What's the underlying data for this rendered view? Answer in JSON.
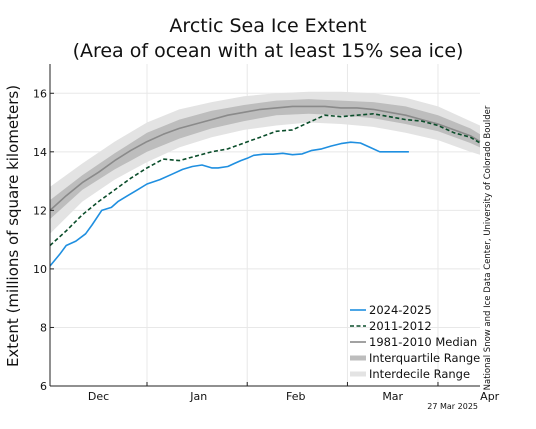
{
  "chart_data": {
    "type": "line",
    "title_line1": "Arctic Sea Ice Extent",
    "title_line2": "(Area of ocean with at least 15% sea ice)",
    "ylabel": "Extent (millions of square kilometers)",
    "xlabel": "",
    "credit": "National Snow and Ice Data Center, University of Colorado Boulder",
    "date_stamp": "27 Mar 2025",
    "ylim": [
      6,
      17
    ],
    "xlim": [
      0,
      133
    ],
    "yticks": [
      6,
      8,
      10,
      12,
      14,
      16
    ],
    "xtick_positions": [
      0,
      30,
      61,
      92,
      120
    ],
    "month_labels": [
      {
        "label": "Dec",
        "x": 15
      },
      {
        "label": "Jan",
        "x": 46
      },
      {
        "label": "Feb",
        "x": 76
      },
      {
        "label": "Mar",
        "x": 106
      },
      {
        "label": "Apr",
        "x": 136
      }
    ],
    "grid": true,
    "legend_position": "lower-right",
    "series": [
      {
        "name": "2024-2025",
        "color": "#1f8fe0",
        "style": "solid",
        "x": [
          0,
          3,
          5,
          8,
          11,
          13,
          16,
          19,
          21,
          24,
          27,
          30,
          34,
          38,
          41,
          44,
          47,
          50,
          52,
          55,
          57,
          59,
          61,
          63,
          66,
          69,
          72,
          75,
          78,
          81,
          84,
          87,
          90,
          93,
          96,
          99,
          102,
          105,
          108,
          111
        ],
        "values": [
          10.1,
          10.5,
          10.8,
          10.95,
          11.2,
          11.5,
          12.0,
          12.1,
          12.3,
          12.5,
          12.7,
          12.9,
          13.05,
          13.25,
          13.4,
          13.5,
          13.55,
          13.45,
          13.45,
          13.5,
          13.6,
          13.7,
          13.78,
          13.88,
          13.92,
          13.92,
          13.95,
          13.9,
          13.93,
          14.05,
          14.1,
          14.2,
          14.28,
          14.33,
          14.3,
          14.15,
          14.0,
          14.0,
          14.0,
          14.0
        ]
      },
      {
        "name": "2011-2012",
        "color": "#0a4d2a",
        "style": "dashed",
        "x": [
          0,
          5,
          10,
          15,
          20,
          25,
          30,
          35,
          40,
          45,
          50,
          55,
          60,
          65,
          70,
          75,
          80,
          85,
          90,
          95,
          100,
          105,
          110,
          115,
          120,
          125,
          130,
          133
        ],
        "values": [
          10.8,
          11.3,
          11.85,
          12.3,
          12.7,
          13.1,
          13.45,
          13.75,
          13.7,
          13.85,
          14.0,
          14.1,
          14.3,
          14.5,
          14.7,
          14.75,
          15.0,
          15.25,
          15.2,
          15.25,
          15.3,
          15.2,
          15.1,
          15.05,
          14.9,
          14.65,
          14.5,
          14.3
        ]
      },
      {
        "name": "1981-2010 Median",
        "color": "#8a8a8a",
        "style": "solid",
        "x": [
          0,
          5,
          10,
          15,
          20,
          25,
          30,
          35,
          40,
          45,
          50,
          55,
          60,
          65,
          70,
          75,
          80,
          85,
          90,
          95,
          100,
          105,
          110,
          115,
          120,
          125,
          130,
          133
        ],
        "values": [
          12.0,
          12.5,
          12.95,
          13.3,
          13.7,
          14.05,
          14.35,
          14.6,
          14.8,
          14.95,
          15.1,
          15.25,
          15.35,
          15.45,
          15.5,
          15.55,
          15.55,
          15.55,
          15.5,
          15.5,
          15.45,
          15.35,
          15.25,
          15.1,
          14.95,
          14.75,
          14.55,
          14.35
        ]
      },
      {
        "name": "Interquartile Range",
        "color": "#bdbdbd",
        "x": [
          0,
          10,
          20,
          30,
          40,
          50,
          60,
          70,
          80,
          90,
          100,
          110,
          120,
          130,
          133
        ],
        "lower": [
          11.7,
          12.7,
          13.4,
          14.0,
          14.45,
          14.8,
          15.05,
          15.25,
          15.3,
          15.25,
          15.15,
          14.95,
          14.7,
          14.3,
          14.15
        ],
        "upper": [
          12.35,
          13.2,
          13.95,
          14.65,
          15.1,
          15.4,
          15.6,
          15.75,
          15.8,
          15.75,
          15.7,
          15.55,
          15.25,
          14.8,
          14.6
        ]
      },
      {
        "name": "Interdecile Range",
        "color": "#e3e3e3",
        "x": [
          0,
          10,
          20,
          30,
          40,
          50,
          60,
          70,
          80,
          90,
          100,
          110,
          120,
          130,
          133
        ],
        "lower": [
          11.2,
          12.3,
          13.05,
          13.65,
          14.15,
          14.5,
          14.75,
          14.9,
          15.0,
          14.95,
          14.85,
          14.65,
          14.4,
          14.0,
          13.9
        ],
        "upper": [
          12.8,
          13.6,
          14.35,
          15.0,
          15.45,
          15.7,
          15.9,
          16.0,
          16.05,
          16.05,
          16.0,
          15.85,
          15.55,
          15.05,
          14.9
        ]
      }
    ]
  }
}
